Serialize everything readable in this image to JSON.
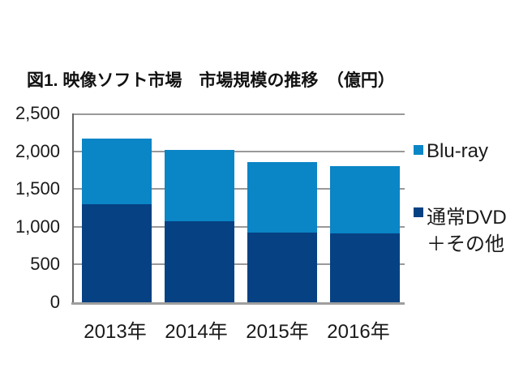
{
  "page": {
    "background_color": "#ffffff"
  },
  "chart_data": {
    "type": "bar",
    "stacked": true,
    "title": "図1. 映像ソフト市場　市場規模の推移　（億円）",
    "unit": "億円",
    "categories": [
      "2013年",
      "2014年",
      "2015年",
      "2016年"
    ],
    "series": [
      {
        "name": "通常DVD＋その他",
        "color": "#064183",
        "values": [
          1299,
          1070,
          928,
          912
        ]
      },
      {
        "name": "Blu-ray",
        "color": "#0a85c6",
        "values": [
          871,
          952,
          934,
          893
        ]
      }
    ],
    "totals": [
      2170,
      2022,
      1862,
      1805
    ],
    "ylim": [
      0,
      2500
    ],
    "ytick_values": [
      2500,
      2000,
      1500,
      1000,
      500,
      0
    ],
    "ytick_labels": [
      "2,500",
      "2,000",
      "1,500",
      "1,000",
      "500",
      "0"
    ],
    "grid": true,
    "legend_position": "right"
  },
  "legend": {
    "items": [
      {
        "swatch_color": "#0a85c6",
        "lines": [
          "Blu-ray"
        ]
      },
      {
        "swatch_color": "#064183",
        "lines": [
          "通常DVD",
          "＋その他"
        ]
      }
    ]
  },
  "colors": {
    "bar_blue": "#0a85c6",
    "bar_navy": "#064183",
    "gridline": "#999999",
    "y_axis": "#666666",
    "x_axis": "#9e9e9e",
    "text": "#1a1a1a"
  }
}
